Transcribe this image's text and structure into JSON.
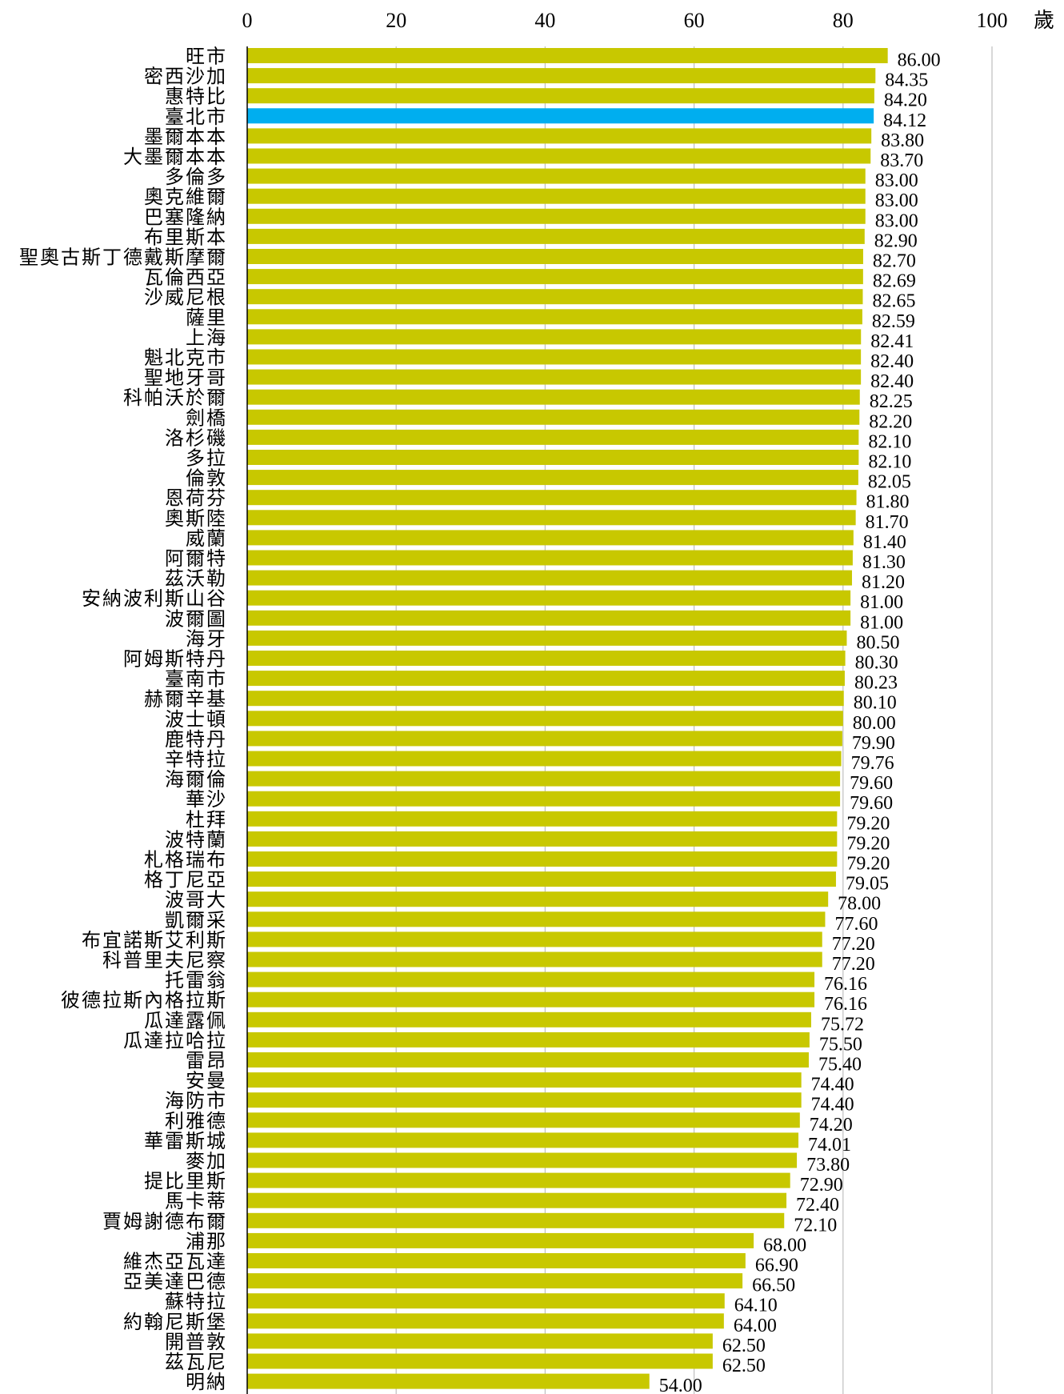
{
  "chart_data": {
    "type": "bar",
    "orientation": "horizontal",
    "title": "",
    "xlabel": "",
    "ylabel": "",
    "unit_label": "歲",
    "xlim": [
      0,
      100
    ],
    "xticks": [
      0,
      20,
      40,
      60,
      80,
      100
    ],
    "x_axis_position": "top",
    "grid": "vertical",
    "colors": {
      "default": "#C8C800",
      "highlight": "#00AEEF",
      "grid": "#BFBFBF"
    },
    "highlight_category": "臺北市",
    "categories": [
      "旺市",
      "密西沙加",
      "惠特比",
      "臺北市",
      "墨爾本本",
      "大墨爾本本",
      "多倫多",
      "奧克維爾",
      "巴塞隆納",
      "布里斯本",
      "聖奧古斯丁德戴斯摩爾",
      "瓦倫西亞",
      "沙威尼根",
      "薩里",
      "上海",
      "魁北克市",
      "聖地牙哥",
      "科帕沃於爾",
      "劍橋",
      "洛杉磯",
      "多拉",
      "倫敦",
      "恩荷芬",
      "奧斯陸",
      "威蘭",
      "阿爾特",
      "茲沃勒",
      "安納波利斯山谷",
      "波爾圖",
      "海牙",
      "阿姆斯特丹",
      "臺南市",
      "赫爾辛基",
      "波士頓",
      "鹿特丹",
      "辛特拉",
      "海爾倫",
      "華沙",
      "杜拜",
      "波特蘭",
      "札格瑞布",
      "格丁尼亞",
      "波哥大",
      "凱爾采",
      "布宜諾斯艾利斯",
      "科普里夫尼察",
      "托雷翁",
      "彼德拉斯內格拉斯",
      "瓜達露佩",
      "瓜達拉哈拉",
      "雷昂",
      "安曼",
      "海防市",
      "利雅德",
      "華雷斯城",
      "麥加",
      "提比里斯",
      "馬卡蒂",
      "賈姆謝德布爾",
      "浦那",
      "維杰亞瓦達",
      "亞美達巴德",
      "蘇特拉",
      "約翰尼斯堡",
      "開普敦",
      "茲瓦尼",
      "明納"
    ],
    "values": [
      86.0,
      84.35,
      84.2,
      84.12,
      83.8,
      83.7,
      83.0,
      83.0,
      83.0,
      82.9,
      82.7,
      82.69,
      82.65,
      82.59,
      82.41,
      82.4,
      82.4,
      82.25,
      82.2,
      82.1,
      82.1,
      82.05,
      81.8,
      81.7,
      81.4,
      81.3,
      81.2,
      81.0,
      81.0,
      80.5,
      80.3,
      80.23,
      80.1,
      80.0,
      79.9,
      79.76,
      79.6,
      79.6,
      79.2,
      79.2,
      79.2,
      79.05,
      78.0,
      77.6,
      77.2,
      77.2,
      76.16,
      76.16,
      75.72,
      75.5,
      75.4,
      74.4,
      74.4,
      74.2,
      74.01,
      73.8,
      72.9,
      72.4,
      72.1,
      68.0,
      66.9,
      66.5,
      64.1,
      64.0,
      62.5,
      62.5,
      54.0
    ],
    "value_labels": [
      "86.00",
      "84.35",
      "84.20",
      "84.12",
      "83.80",
      "83.70",
      "83.00",
      "83.00",
      "83.00",
      "82.90",
      "82.70",
      "82.69",
      "82.65",
      "82.59",
      "82.41",
      "82.40",
      "82.40",
      "82.25",
      "82.20",
      "82.10",
      "82.10",
      "82.05",
      "81.80",
      "81.70",
      "81.40",
      "81.30",
      "81.20",
      "81.00",
      "81.00",
      "80.50",
      "80.30",
      "80.23",
      "80.10",
      "80.00",
      "79.90",
      "79.76",
      "79.60",
      "79.60",
      "79.20",
      "79.20",
      "79.20",
      "79.05",
      "78.00",
      "77.60",
      "77.20",
      "77.20",
      "76.16",
      "76.16",
      "75.72",
      "75.50",
      "75.40",
      "74.40",
      "74.40",
      "74.20",
      "74.01",
      "73.80",
      "72.90",
      "72.40",
      "72.10",
      "68.00",
      "66.90",
      "66.50",
      "64.10",
      "64.00",
      "62.50",
      "62.50",
      "54.00"
    ]
  }
}
